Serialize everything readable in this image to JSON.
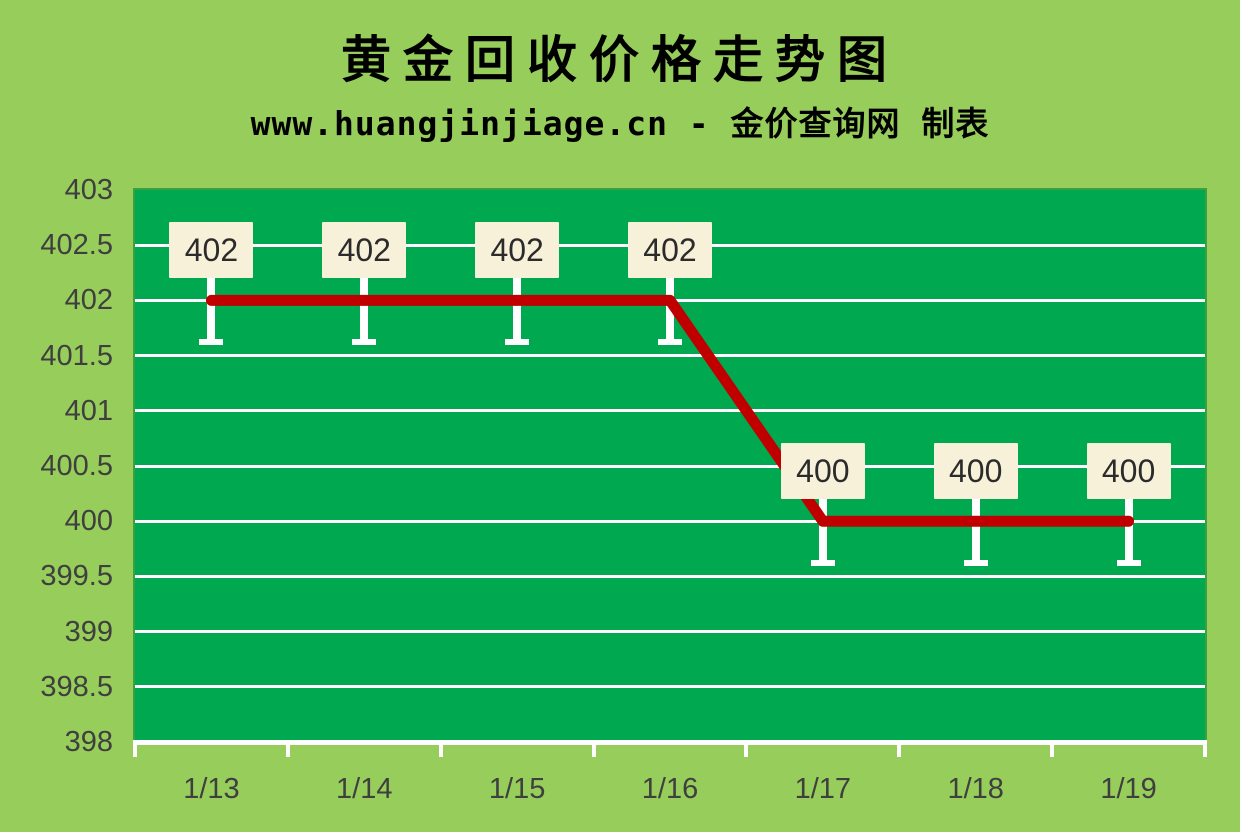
{
  "title": "黄金回收价格走势图",
  "subtitle": "www.huangjinjiage.cn - 金价查询网 制表",
  "colors": {
    "page_bg": "#97cd5a",
    "plot_bg": "#00a84f",
    "plot_border": "#3aa040",
    "gridline": "#ffffff",
    "line": "#c00000",
    "label_box_bg": "#f8f1d9",
    "label_box_text": "#2b2b2b",
    "axis_text": "#3f3f3f",
    "title_text": "#000000",
    "stem": "#ffffff"
  },
  "chart_data": {
    "type": "line",
    "title": "黄金回收价格走势图",
    "subtitle": "www.huangjinjiage.cn - 金价查询网 制表",
    "categories": [
      "1/13",
      "1/14",
      "1/15",
      "1/16",
      "1/17",
      "1/18",
      "1/19"
    ],
    "series": [
      {
        "name": "黄金回收价格",
        "values": [
          402,
          402,
          402,
          402,
          400,
          400,
          400
        ]
      }
    ],
    "data_labels": [
      "402",
      "402",
      "402",
      "402",
      "400",
      "400",
      "400"
    ],
    "xlabel": "",
    "ylabel": "",
    "ylim": [
      398,
      403
    ],
    "ytick_step": 0.5,
    "yticks": [
      "403",
      "402.5",
      "402",
      "401.5",
      "401",
      "400.5",
      "400",
      "399.5",
      "399",
      "398.5",
      "398"
    ],
    "grid": "horizontal-white",
    "legend": false
  }
}
